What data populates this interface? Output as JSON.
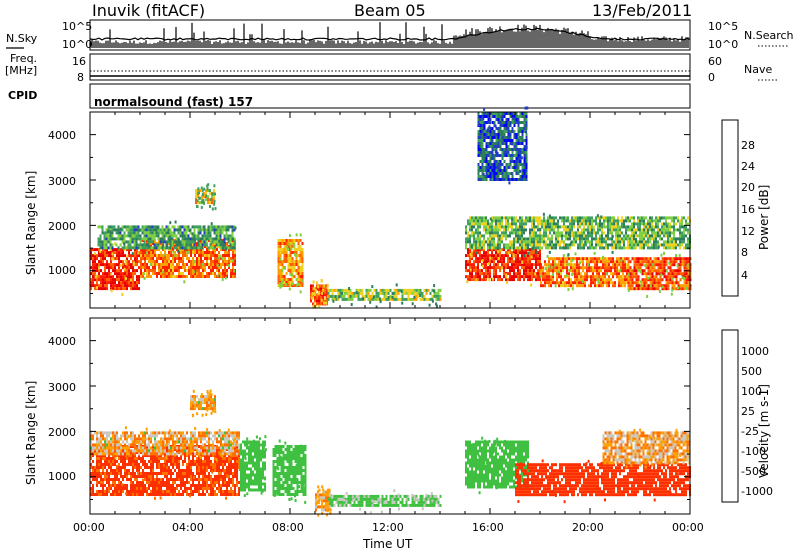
{
  "header": {
    "station": "Inuvik (fitACF)",
    "beam": "Beam 05",
    "date": "13/Feb/2011"
  },
  "summary": {
    "nsky_label": "N.Sky",
    "nsearch_label": "N.Search",
    "freq_label_1": "Freq.",
    "freq_label_2": "[MHz]",
    "nave_label": "Nave",
    "cpid_label": "CPID",
    "nsky_ticks": [
      "10^5",
      "10^0"
    ],
    "nsearch_ticks": [
      "10^5",
      "10^0"
    ],
    "freq_ticks": [
      "16",
      "8"
    ],
    "nave_ticks": [
      "60",
      "0"
    ],
    "cpid_text": "normalsound (fast) 157"
  },
  "axes": {
    "xlabel": "Time UT",
    "x_ticks": [
      "00:00",
      "04:00",
      "08:00",
      "12:00",
      "16:00",
      "20:00",
      "00:00"
    ],
    "ylabel": "Slant Range [km]",
    "y_ticks": [
      "1000",
      "2000",
      "3000",
      "4000"
    ]
  },
  "colors": {
    "power_scale": [
      "#0000ff",
      "#2040c0",
      "#2e7d5a",
      "#3f9f5f",
      "#7fd040",
      "#f0d020",
      "#ffa000",
      "#ff6000",
      "#ff2000",
      "#e80000"
    ],
    "velocity_scale": [
      "#1040c0",
      "#2e8a5e",
      "#40c040",
      "#c8c8c0",
      "#ffa000",
      "#ff7000",
      "#ff3000",
      "#e80000"
    ]
  },
  "chart_data": [
    {
      "type": "heatmap",
      "title": "",
      "xlabel": "",
      "ylabel": "Slant Range [km]",
      "xlim": [
        0,
        24
      ],
      "ylim": [
        180,
        4500
      ],
      "colorbar": {
        "label": "Power [dB]",
        "ticks": [
          "28",
          "24",
          "20",
          "16",
          "12",
          "8",
          "4"
        ],
        "range": [
          0,
          30
        ]
      },
      "regions": [
        {
          "t0": 0.0,
          "t1": 2.0,
          "r0": 600,
          "r1": 1500,
          "level": 27
        },
        {
          "t0": 2.0,
          "t1": 5.8,
          "r0": 900,
          "r1": 1700,
          "level": 22
        },
        {
          "t0": 0.3,
          "t1": 5.8,
          "r0": 1500,
          "r1": 2000,
          "level": 10
        },
        {
          "t0": 4.2,
          "t1": 5.0,
          "r0": 2500,
          "r1": 2800,
          "level": 18
        },
        {
          "t0": 7.5,
          "t1": 8.5,
          "r0": 700,
          "r1": 1700,
          "level": 20
        },
        {
          "t0": 8.8,
          "t1": 9.5,
          "r0": 300,
          "r1": 700,
          "level": 26
        },
        {
          "t0": 9.5,
          "t1": 14.0,
          "r0": 350,
          "r1": 600,
          "level": 14
        },
        {
          "t0": 15.0,
          "t1": 18.0,
          "r0": 800,
          "r1": 1500,
          "level": 26
        },
        {
          "t0": 18.0,
          "t1": 21.5,
          "r0": 700,
          "r1": 1300,
          "level": 22
        },
        {
          "t0": 21.5,
          "t1": 24.0,
          "r0": 600,
          "r1": 1300,
          "level": 24
        },
        {
          "t0": 15.0,
          "t1": 24.0,
          "r0": 1500,
          "r1": 2200,
          "level": 12
        },
        {
          "t0": 15.5,
          "t1": 17.5,
          "r0": 3000,
          "r1": 4500,
          "level": 6
        }
      ]
    },
    {
      "type": "heatmap",
      "title": "",
      "xlabel": "Time UT",
      "ylabel": "Slant Range [km]",
      "xlim": [
        0,
        24
      ],
      "ylim": [
        180,
        4500
      ],
      "colorbar": {
        "label": "Velocity [m s-1]",
        "ticks": [
          "1000",
          "500",
          "100",
          "25",
          "-25",
          "-100",
          "-500",
          "-1000"
        ],
        "range": [
          -1200,
          1200
        ]
      },
      "regions": [
        {
          "t0": 0.0,
          "t1": 6.0,
          "r0": 600,
          "r1": 1700,
          "level": -150
        },
        {
          "t0": 0.0,
          "t1": 6.0,
          "r0": 1500,
          "r1": 2000,
          "level": 10
        },
        {
          "t0": 4.0,
          "t1": 5.0,
          "r0": 2500,
          "r1": 2800,
          "level": 5
        },
        {
          "t0": 6.0,
          "t1": 7.0,
          "r0": 700,
          "r1": 1800,
          "level": 300
        },
        {
          "t0": 7.3,
          "t1": 8.6,
          "r0": 600,
          "r1": 1700,
          "level": 250
        },
        {
          "t0": 9.0,
          "t1": 9.6,
          "r0": 300,
          "r1": 700,
          "level": 5
        },
        {
          "t0": 9.5,
          "t1": 14.0,
          "r0": 350,
          "r1": 600,
          "level": 150
        },
        {
          "t0": 15.0,
          "t1": 17.5,
          "r0": 800,
          "r1": 1800,
          "level": 300
        },
        {
          "t0": 17.0,
          "t1": 24.0,
          "r0": 600,
          "r1": 1300,
          "level": -200
        },
        {
          "t0": 20.5,
          "t1": 24.0,
          "r0": 1300,
          "r1": 2000,
          "level": 0
        }
      ]
    }
  ]
}
